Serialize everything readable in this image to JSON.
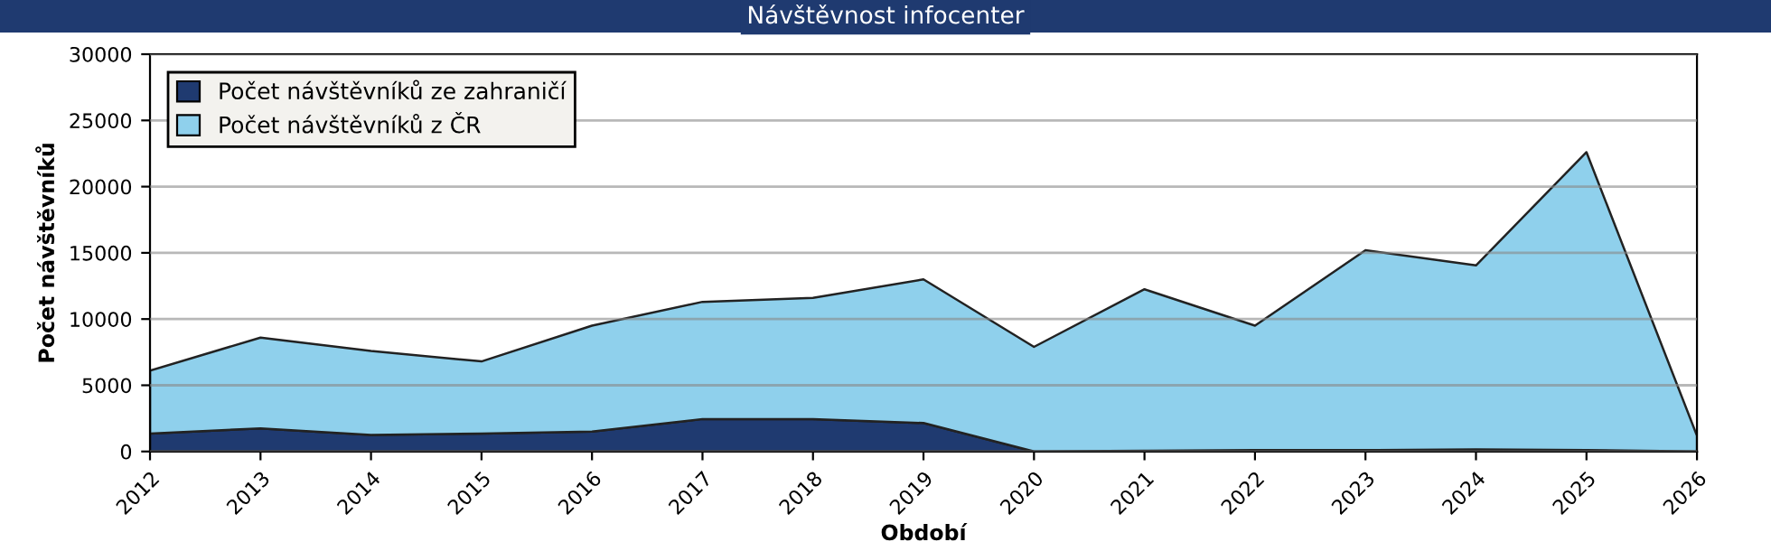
{
  "chart_data": {
    "type": "area",
    "stacked": true,
    "title": "Návštěvnost infocenter",
    "xlabel": "Období",
    "ylabel": "Počet návštěvníků",
    "categories": [
      "2012",
      "2013",
      "2014",
      "2015",
      "2016",
      "2017",
      "2018",
      "2019",
      "2020",
      "2021",
      "2022",
      "2023",
      "2024",
      "2025",
      "2026"
    ],
    "series": [
      {
        "name": "Počet návštěvníků ze zahraničí",
        "color": "#1f3a70",
        "values": [
          1350,
          1750,
          1250,
          1350,
          1500,
          2450,
          2450,
          2150,
          0,
          50,
          100,
          100,
          150,
          100,
          0
        ]
      },
      {
        "name": "Počet návštěvníků z ČR",
        "color": "#8fd0ec",
        "values": [
          4750,
          6850,
          6350,
          5450,
          8000,
          8850,
          9150,
          10850,
          7900,
          12200,
          9400,
          15100,
          13900,
          22500,
          1200
        ]
      }
    ],
    "ylim": [
      0,
      30000
    ],
    "yticks": [
      0,
      5000,
      10000,
      15000,
      20000,
      25000,
      30000
    ],
    "grid": "y",
    "legend": "top left"
  }
}
